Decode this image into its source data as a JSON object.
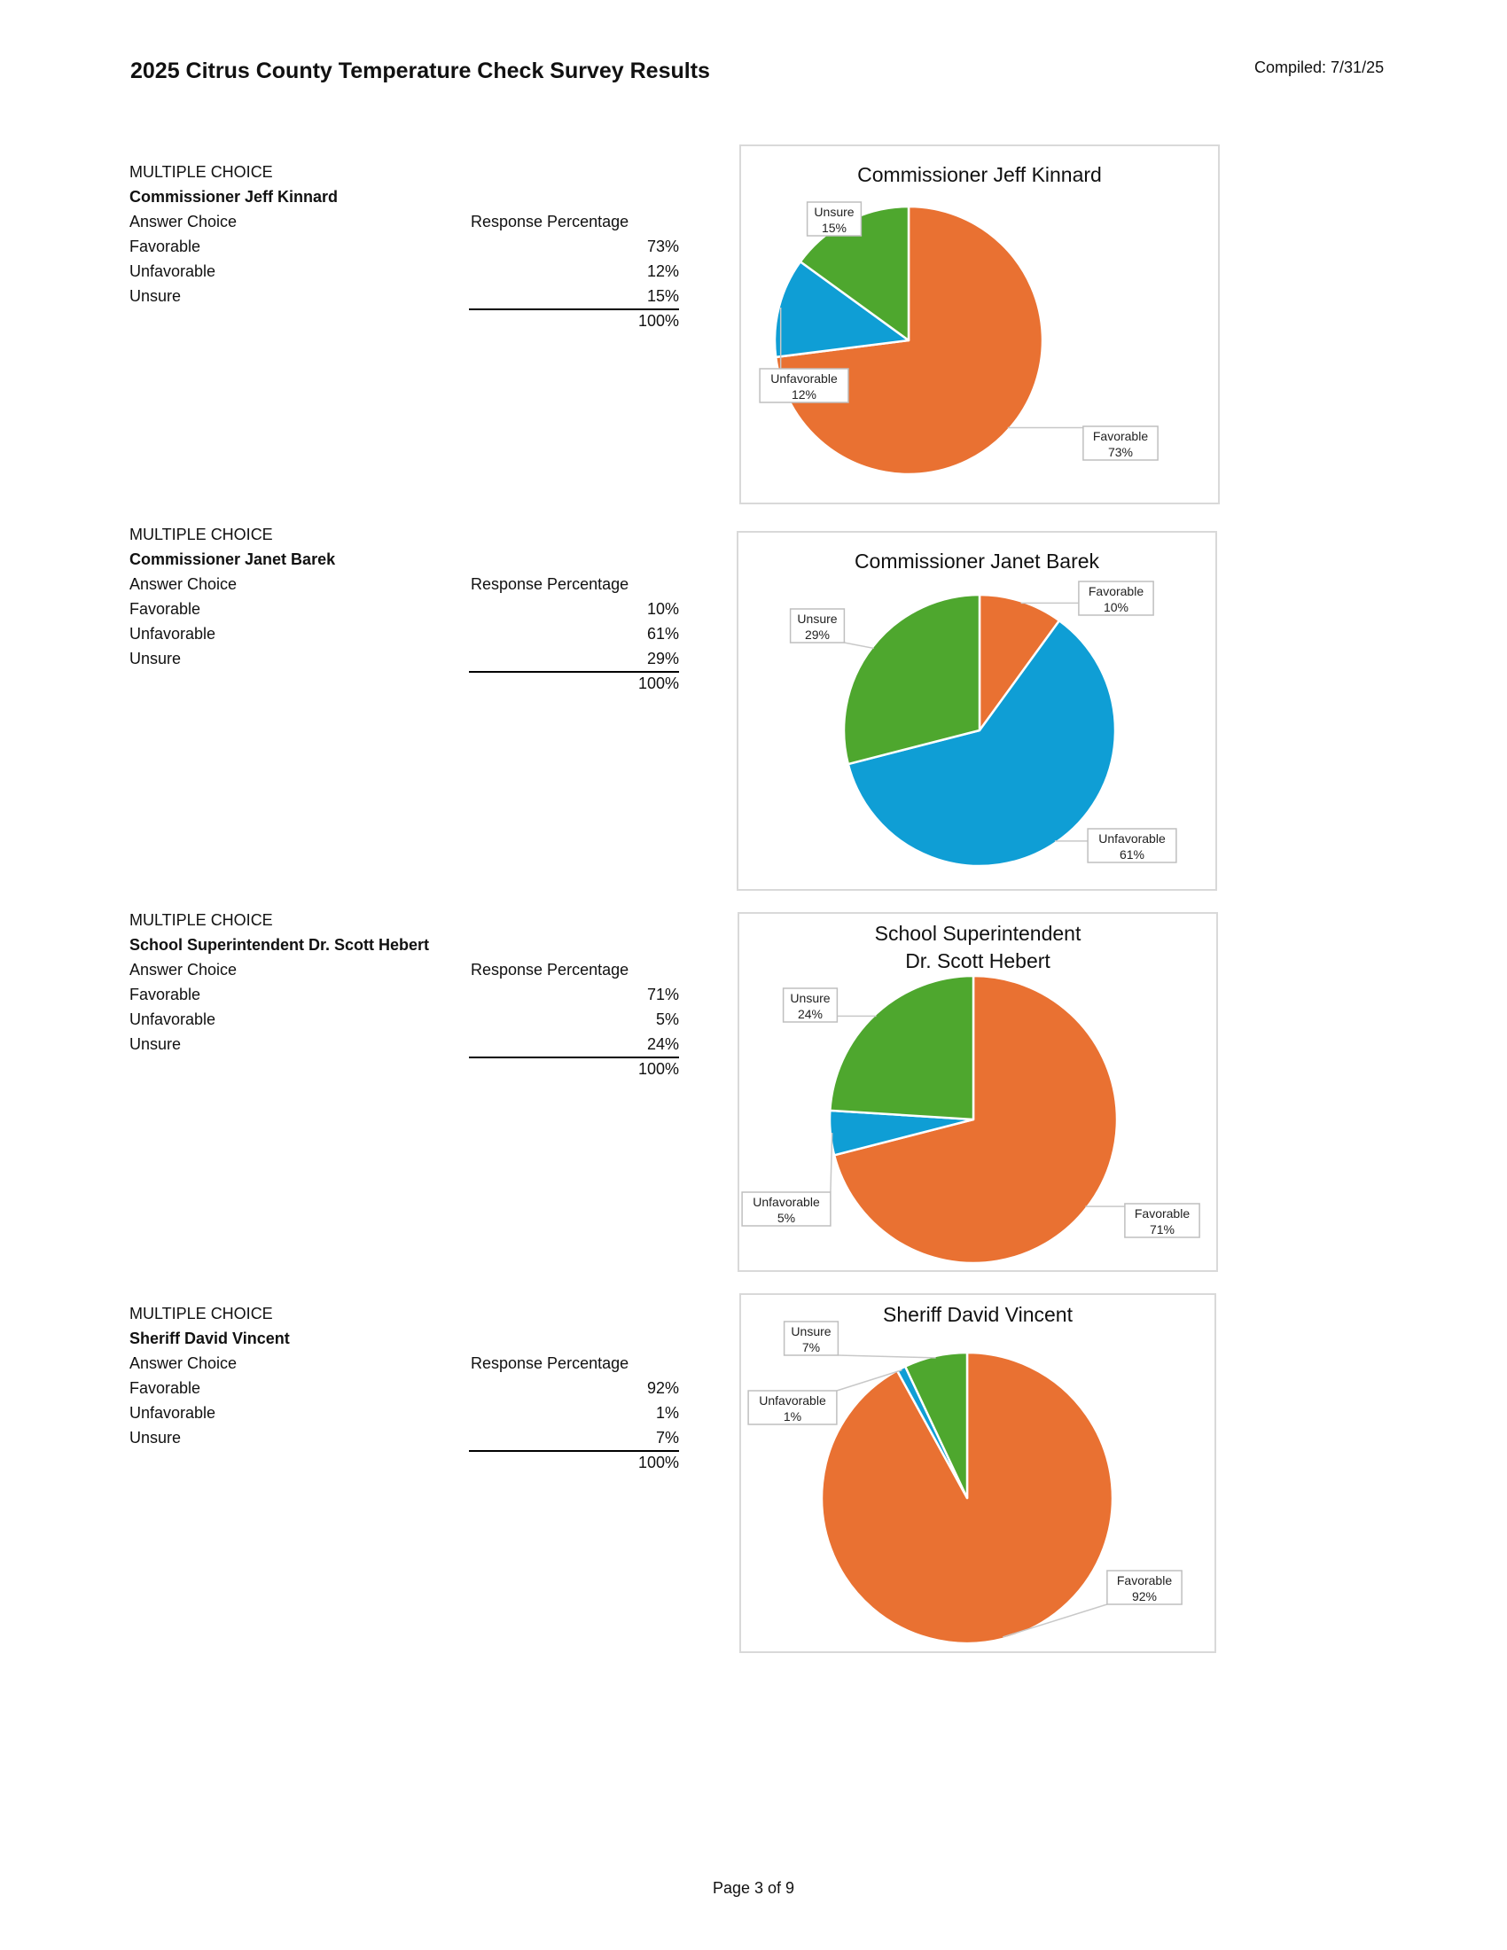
{
  "header": {
    "title": "2025 Citrus County Temperature Check Survey Results",
    "compiled": "Compiled: 7/31/25"
  },
  "footer": {
    "page": "Page 3 of 9"
  },
  "colors": {
    "Favorable": "#E97132",
    "Unfavorable": "#0F9ED5",
    "Unsure": "#4EA72E"
  },
  "tables": [
    {
      "type_label": "MULTIPLE CHOICE",
      "question": "Commissioner Jeff Kinnard",
      "col_answer": "Answer Choice",
      "col_response": "Response Percentage",
      "rows": [
        {
          "label": "Favorable",
          "value": "73%"
        },
        {
          "label": "Unfavorable",
          "value": "12%"
        },
        {
          "label": "Unsure",
          "value": "15%"
        }
      ],
      "total": "100%"
    },
    {
      "type_label": "MULTIPLE CHOICE",
      "question": "Commissioner Janet Barek",
      "col_answer": "Answer Choice",
      "col_response": "Response Percentage",
      "rows": [
        {
          "label": "Favorable",
          "value": "10%"
        },
        {
          "label": "Unfavorable",
          "value": "61%"
        },
        {
          "label": "Unsure",
          "value": "29%"
        }
      ],
      "total": "100%"
    },
    {
      "type_label": "MULTIPLE CHOICE",
      "question": "School Superintendent Dr. Scott Hebert",
      "col_answer": "Answer Choice",
      "col_response": "Response Percentage",
      "rows": [
        {
          "label": "Favorable",
          "value": "71%"
        },
        {
          "label": "Unfavorable",
          "value": "5%"
        },
        {
          "label": "Unsure",
          "value": "24%"
        }
      ],
      "total": "100%"
    },
    {
      "type_label": "MULTIPLE CHOICE",
      "question": "Sheriff David Vincent",
      "col_answer": "Answer Choice",
      "col_response": "Response Percentage",
      "rows": [
        {
          "label": "Favorable",
          "value": "92%"
        },
        {
          "label": "Unfavorable",
          "value": "1%"
        },
        {
          "label": "Unsure",
          "value": "7%"
        }
      ],
      "total": "100%"
    }
  ],
  "chart_data": [
    {
      "type": "pie",
      "title": [
        "Commissioner Jeff Kinnard"
      ],
      "categories": [
        "Favorable",
        "Unfavorable",
        "Unsure"
      ],
      "values": [
        73,
        12,
        15
      ],
      "data_labels": [
        "73%",
        "12%",
        "15%"
      ]
    },
    {
      "type": "pie",
      "title": [
        "Commissioner Janet Barek"
      ],
      "categories": [
        "Favorable",
        "Unfavorable",
        "Unsure"
      ],
      "values": [
        10,
        61,
        29
      ],
      "data_labels": [
        "10%",
        "61%",
        "29%"
      ]
    },
    {
      "type": "pie",
      "title": [
        "School Superintendent",
        "Dr. Scott Hebert"
      ],
      "categories": [
        "Favorable",
        "Unfavorable",
        "Unsure"
      ],
      "values": [
        71,
        5,
        24
      ],
      "data_labels": [
        "71%",
        "5%",
        "24%"
      ]
    },
    {
      "type": "pie",
      "title": [
        "Sheriff David Vincent"
      ],
      "categories": [
        "Favorable",
        "Unfavorable",
        "Unsure"
      ],
      "values": [
        92,
        1,
        7
      ],
      "data_labels": [
        "92%",
        "1%",
        "7%"
      ]
    }
  ]
}
